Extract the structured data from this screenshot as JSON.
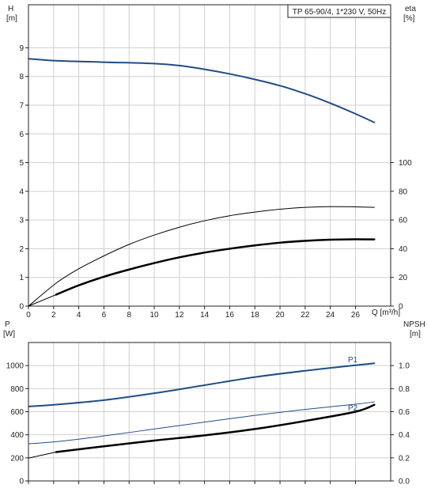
{
  "title_box": "TP 65-90/4, 1*230 V, 50Hz",
  "colors": {
    "blue": "#1f4e86",
    "black": "#000000",
    "grid": "#cfcfcf",
    "axis": "#222222"
  },
  "chart_data": [
    {
      "type": "line",
      "title": "TP 65-90/4, 1*230 V, 50Hz",
      "xlabel": "Q [m³/h]",
      "ylabel": "H [m]",
      "ylabel_right": "eta [%]",
      "xlim": [
        0,
        28.8
      ],
      "ylim": [
        0,
        10.5
      ],
      "ylim_right": [
        0,
        210
      ],
      "x_ticks": [
        0,
        2,
        4,
        6,
        8,
        10,
        12,
        14,
        16,
        18,
        20,
        22,
        24,
        26
      ],
      "y_ticks": [
        0,
        1,
        2,
        3,
        4,
        5,
        6,
        7,
        8,
        9
      ],
      "y_right_ticks": [
        0,
        20,
        40,
        60,
        80,
        100
      ],
      "grid": true,
      "series": [
        {
          "name": "H",
          "axis": "left",
          "color": "#1f4e86",
          "width": 2,
          "points": [
            [
              0,
              8.62
            ],
            [
              2.2,
              8.55
            ],
            [
              6,
              8.5
            ],
            [
              10,
              8.45
            ],
            [
              12,
              8.38
            ],
            [
              14,
              8.25
            ],
            [
              16,
              8.09
            ],
            [
              18,
              7.9
            ],
            [
              20,
              7.68
            ],
            [
              22,
              7.4
            ],
            [
              24,
              7.07
            ],
            [
              26,
              6.7
            ],
            [
              27.5,
              6.4
            ]
          ]
        },
        {
          "name": "eta",
          "axis": "right",
          "color": "#000000",
          "width": 1,
          "points": [
            [
              0,
              0
            ],
            [
              2.2,
              16
            ],
            [
              4,
              26
            ],
            [
              6,
              35
            ],
            [
              8,
              43
            ],
            [
              10,
              49.5
            ],
            [
              12,
              55
            ],
            [
              14,
              59.5
            ],
            [
              16,
              63
            ],
            [
              18,
              65.5
            ],
            [
              20,
              67.5
            ],
            [
              22,
              68.8
            ],
            [
              24,
              69.3
            ],
            [
              26,
              69.2
            ],
            [
              27.5,
              68.8
            ]
          ]
        },
        {
          "name": "eta_thick",
          "axis": "right",
          "color": "#000000",
          "width": 2.5,
          "points": [
            [
              2.2,
              8
            ],
            [
              4,
              14.5
            ],
            [
              6,
              20.5
            ],
            [
              8,
              25.5
            ],
            [
              10,
              30
            ],
            [
              12,
              34
            ],
            [
              14,
              37.3
            ],
            [
              16,
              40
            ],
            [
              18,
              42.3
            ],
            [
              20,
              44.2
            ],
            [
              22,
              45.5
            ],
            [
              24,
              46.3
            ],
            [
              26,
              46.6
            ],
            [
              27.5,
              46.5
            ]
          ]
        },
        {
          "name": "eta_thin_lead",
          "axis": "right",
          "color": "#000000",
          "width": 1,
          "points": [
            [
              0,
              0
            ],
            [
              2.2,
              8
            ]
          ]
        }
      ]
    },
    {
      "type": "line",
      "xlabel": "",
      "ylabel": "P [W]",
      "ylabel_right": "NPSH [m]",
      "xlim": [
        0,
        28.8
      ],
      "ylim": [
        0,
        1200
      ],
      "ylim_right": [
        0,
        1.2
      ],
      "y_ticks": [
        0,
        200,
        400,
        600,
        800,
        1000
      ],
      "y_right_ticks": [
        0.0,
        0.2,
        0.4,
        0.6,
        0.8,
        1.0
      ],
      "grid": true,
      "series": [
        {
          "name": "P1",
          "color": "#1f4e86",
          "width": 2,
          "label": "P1",
          "points": [
            [
              0,
              645
            ],
            [
              2.2,
              662
            ],
            [
              6,
              700
            ],
            [
              10,
              760
            ],
            [
              14,
              830
            ],
            [
              18,
              900
            ],
            [
              22,
              955
            ],
            [
              26,
              1003
            ],
            [
              27.5,
              1020
            ]
          ],
          "lead_points": [
            [
              0,
              645
            ],
            [
              2.2,
              662
            ]
          ]
        },
        {
          "name": "P2",
          "color": "#1f4e86",
          "width": 1,
          "label": "P2",
          "points": [
            [
              0,
              322
            ],
            [
              2.2,
              340
            ],
            [
              6,
              390
            ],
            [
              10,
              450
            ],
            [
              14,
              510
            ],
            [
              18,
              568
            ],
            [
              22,
              620
            ],
            [
              26,
              665
            ],
            [
              27.5,
              685
            ]
          ]
        },
        {
          "name": "NPSH",
          "color": "#000000",
          "width": 2.5,
          "points": [
            [
              2.2,
              250
            ],
            [
              6,
              300
            ],
            [
              10,
              350
            ],
            [
              14,
              395
            ],
            [
              18,
              450
            ],
            [
              22,
              520
            ],
            [
              26,
              600
            ],
            [
              27.5,
              660
            ]
          ],
          "lead_points": [
            [
              0,
              198
            ],
            [
              2.2,
              250
            ]
          ]
        }
      ]
    }
  ],
  "labels": {
    "top_left_axis": "H",
    "top_left_unit": "[m]",
    "top_right_axis": "eta",
    "top_right_unit": "[%]",
    "x_axis": "Q [m³/h]",
    "bottom_left_axis": "P",
    "bottom_left_unit": "[W]",
    "bottom_right_axis": "NPSH",
    "bottom_right_unit": "[m]"
  }
}
